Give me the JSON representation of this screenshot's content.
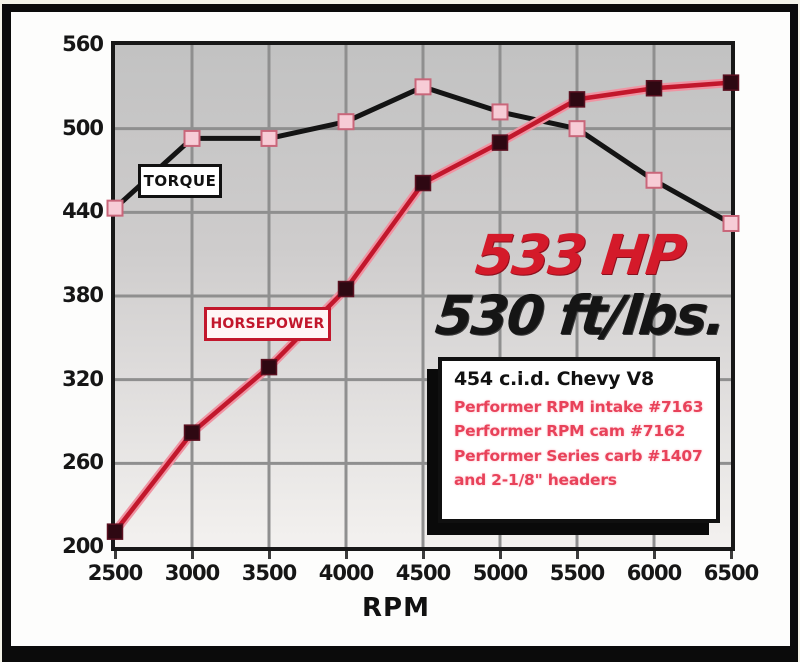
{
  "chart_data": {
    "type": "line",
    "title": "",
    "xlabel": "RPM",
    "ylabel": "",
    "xlim": [
      2500,
      6500
    ],
    "ylim": [
      200,
      560
    ],
    "x_ticks": [
      2500,
      3000,
      3500,
      4000,
      4500,
      5000,
      5500,
      6000,
      6500
    ],
    "y_ticks": [
      200,
      260,
      320,
      380,
      440,
      500,
      560
    ],
    "grid": true,
    "x": [
      2500,
      3000,
      3500,
      4000,
      4500,
      5000,
      5500,
      6000,
      6500
    ],
    "series": [
      {
        "name": "TORQUE",
        "values": [
          443,
          493,
          493,
          505,
          530,
          512,
          500,
          463,
          432
        ],
        "line_color": "#141414",
        "marker": "square",
        "marker_fill": "#f7ccd6",
        "marker_edge": "#c9667a"
      },
      {
        "name": "HORSEPOWER",
        "values": [
          211,
          282,
          329,
          385,
          461,
          490,
          521,
          529,
          533
        ],
        "line_color": "#c2172c",
        "line_glow": "#ef93a2",
        "marker": "square",
        "marker_fill": "#2e0812",
        "marker_edge": "#5a1020"
      }
    ],
    "annotations": [
      "533 HP",
      "530 ft/lbs."
    ],
    "legend_position": "on-curve-labels"
  },
  "labels": {
    "torque_tag": "TORQUE",
    "horsepower_tag": "HORSEPOWER",
    "hp_callout": "533 HP",
    "torque_callout": "530 ft/lbs.",
    "x_axis": "RPM"
  },
  "info_box": {
    "title": "454 c.i.d. Chevy V8",
    "lines": [
      "Performer RPM intake #7163",
      "Performer RPM cam #7162",
      "Performer Series carb #1407",
      "and 2-1/8\" headers"
    ]
  },
  "colors": {
    "accent_red": "#c2172c",
    "callout_red": "#d41a2a",
    "info_red": "#e8425a",
    "grid": "#8f8f8f",
    "frame": "#0b0b0b",
    "plot_bg_top": "#c2c2c2",
    "plot_bg_bottom": "#f3f1ef"
  }
}
